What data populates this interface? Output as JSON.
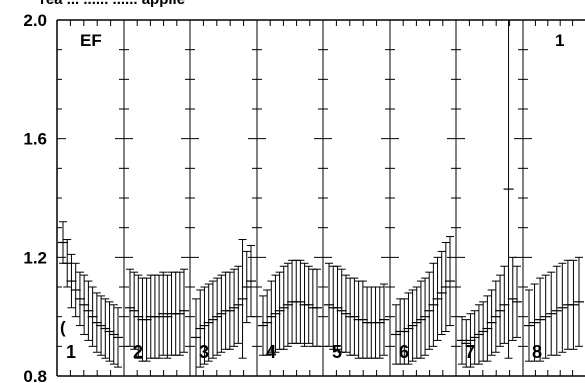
{
  "chart_data": {
    "type": "scatter",
    "top_caption": "rea ... ...... ...... applie",
    "title": "EF",
    "corner_label": "1",
    "paren_mark": "(",
    "ylim": [
      0.8,
      2.0
    ],
    "yticks": [
      0.8,
      1.2,
      1.6,
      2.0
    ],
    "ytick_labels": [
      "0.8",
      "1.2",
      "1.6",
      "2.0"
    ],
    "panel_labels": [
      "1",
      "2",
      "3",
      "4",
      "5",
      "6",
      "7",
      "8"
    ],
    "error_bars": true,
    "series": [
      {
        "panel": "1",
        "y": [
          1.25,
          1.18,
          1.12,
          1.09,
          1.06,
          1.04,
          1.02,
          1.0,
          0.98,
          0.97,
          0.96,
          0.95,
          0.94,
          0.93
        ],
        "err": [
          0.07,
          0.08,
          0.09,
          0.09,
          0.09,
          0.1,
          0.1,
          0.1,
          0.1,
          0.1,
          0.1,
          0.1,
          0.1,
          0.1
        ]
      },
      {
        "panel": "2",
        "y": [
          1.03,
          1.02,
          1.0,
          0.99,
          0.99,
          1.0,
          1.0,
          1.0,
          1.01,
          1.0,
          1.01,
          1.01,
          1.01,
          1.02
        ],
        "err": [
          0.13,
          0.13,
          0.14,
          0.14,
          0.14,
          0.14,
          0.14,
          0.14,
          0.14,
          0.14,
          0.14,
          0.14,
          0.14,
          0.14
        ]
      },
      {
        "panel": "3",
        "y": [
          0.93,
          0.96,
          0.97,
          0.98,
          0.99,
          1.0,
          1.01,
          1.02,
          1.02,
          1.03,
          1.04,
          1.06,
          1.1,
          1.12
        ],
        "err": [
          0.13,
          0.13,
          0.13,
          0.13,
          0.13,
          0.13,
          0.13,
          0.13,
          0.13,
          0.13,
          0.13,
          0.2,
          0.12,
          0.12
        ]
      },
      {
        "panel": "4",
        "y": [
          0.97,
          0.98,
          1.0,
          1.01,
          1.02,
          1.03,
          1.04,
          1.05,
          1.05,
          1.05,
          1.04,
          1.04,
          1.03,
          1.03
        ],
        "err": [
          0.1,
          0.11,
          0.12,
          0.13,
          0.13,
          0.14,
          0.14,
          0.14,
          0.14,
          0.14,
          0.14,
          0.13,
          0.13,
          0.13
        ]
      },
      {
        "panel": "5",
        "y": [
          1.04,
          1.03,
          1.03,
          1.02,
          1.01,
          1.0,
          1.0,
          0.99,
          0.99,
          0.98,
          0.98,
          0.98,
          0.98,
          0.99
        ],
        "err": [
          0.14,
          0.14,
          0.14,
          0.14,
          0.13,
          0.13,
          0.13,
          0.13,
          0.13,
          0.12,
          0.12,
          0.12,
          0.12,
          0.12
        ]
      },
      {
        "panel": "6",
        "y": [
          0.94,
          0.95,
          0.95,
          0.96,
          0.97,
          0.98,
          0.99,
          1.0,
          1.02,
          1.04,
          1.06,
          1.08,
          1.1,
          1.12
        ],
        "err": [
          0.1,
          0.11,
          0.11,
          0.12,
          0.12,
          0.12,
          0.13,
          0.13,
          0.13,
          0.14,
          0.14,
          0.14,
          0.15,
          0.15
        ]
      },
      {
        "panel": "7",
        "y": [
          0.92,
          0.91,
          0.92,
          0.93,
          0.94,
          0.95,
          0.96,
          0.98,
          1.0,
          1.02,
          1.04,
          1.43,
          1.06,
          1.05
        ],
        "err": [
          0.08,
          0.08,
          0.09,
          0.09,
          0.1,
          0.1,
          0.11,
          0.11,
          0.12,
          0.12,
          0.13,
          0.57,
          0.14,
          0.12
        ]
      },
      {
        "panel": "8",
        "y": [
          0.97,
          0.98,
          0.99,
          1.0,
          1.01,
          1.02,
          1.03,
          1.04,
          1.04,
          1.05
        ],
        "err": [
          0.12,
          0.13,
          0.14,
          0.14,
          0.14,
          0.15,
          0.15,
          0.15,
          0.15,
          0.15
        ]
      }
    ],
    "colors": {
      "ink": "#000000",
      "background": "#ffffff"
    }
  }
}
